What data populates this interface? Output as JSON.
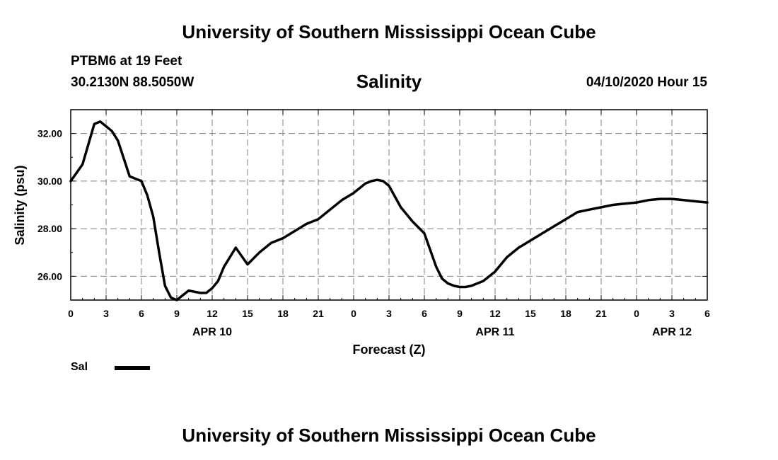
{
  "header": {
    "title_top": "University of Southern Mississippi Ocean Cube",
    "station": "PTBM6 at 19 Feet",
    "coords": "30.2130N 88.5050W",
    "parameter": "Salinity",
    "datetime": "04/10/2020 Hour 15"
  },
  "footer": {
    "title_bottom": "University of Southern Mississippi Ocean Cube"
  },
  "legend": {
    "label": "Sal"
  },
  "chart_data": {
    "type": "line",
    "xlabel": "Forecast (Z)",
    "ylabel": "Salinity (psu)",
    "xlim": [
      0,
      54
    ],
    "ylim": [
      25,
      33
    ],
    "x_tick_labels": [
      "0",
      "3",
      "6",
      "9",
      "12",
      "15",
      "18",
      "21",
      "0",
      "3",
      "6",
      "9",
      "12",
      "15",
      "18",
      "21",
      "0",
      "3",
      "6"
    ],
    "y_tick_labels": [
      "26.00",
      "28.00",
      "30.00",
      "32.00"
    ],
    "y_ticks": [
      26,
      28,
      30,
      32
    ],
    "date_labels": [
      {
        "x": 12,
        "label": "APR 10"
      },
      {
        "x": 36,
        "label": "APR 11"
      },
      {
        "x": 51,
        "label": "APR 12"
      }
    ],
    "grid": true,
    "series": [
      {
        "name": "Sal",
        "color": "#000000",
        "x": [
          0,
          1,
          2,
          2.5,
          3,
          3.5,
          4,
          5,
          6,
          6.5,
          7,
          7.5,
          8,
          8.5,
          9,
          10,
          11,
          11.5,
          12,
          12.5,
          13,
          14,
          15,
          16,
          17,
          18,
          19,
          20,
          21,
          22,
          23,
          24,
          25,
          25.5,
          26,
          26.5,
          27,
          28,
          29,
          30,
          31,
          31.5,
          32,
          32.5,
          33,
          33.5,
          34,
          35,
          36,
          37,
          38,
          39,
          40,
          41,
          42,
          43,
          44,
          45,
          46,
          47,
          48,
          49,
          50,
          51,
          52,
          53,
          54
        ],
        "y": [
          30.0,
          30.7,
          32.4,
          32.5,
          32.3,
          32.1,
          31.7,
          30.2,
          30.0,
          29.4,
          28.5,
          27.0,
          25.6,
          25.1,
          25.0,
          25.4,
          25.3,
          25.3,
          25.5,
          25.8,
          26.4,
          27.2,
          26.5,
          27.0,
          27.4,
          27.6,
          27.9,
          28.2,
          28.4,
          28.8,
          29.2,
          29.5,
          29.9,
          30.0,
          30.05,
          30.0,
          29.8,
          28.9,
          28.3,
          27.8,
          26.4,
          25.9,
          25.7,
          25.6,
          25.55,
          25.55,
          25.6,
          25.8,
          26.2,
          26.8,
          27.2,
          27.5,
          27.8,
          28.1,
          28.4,
          28.7,
          28.8,
          28.9,
          29.0,
          29.05,
          29.1,
          29.2,
          29.25,
          29.25,
          29.2,
          29.15,
          29.1
        ]
      }
    ]
  }
}
